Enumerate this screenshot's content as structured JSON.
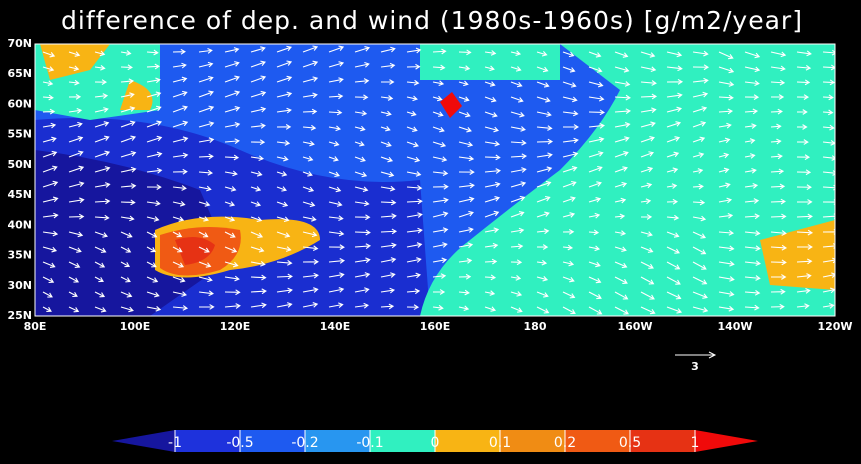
{
  "title": "difference of dep. and wind (1980s-1960s) [g/m2/year]",
  "map": {
    "lat_labels": [
      "70N",
      "65N",
      "60N",
      "55N",
      "50N",
      "45N",
      "40N",
      "35N",
      "30N",
      "25N"
    ],
    "lon_labels": [
      "80E",
      "100E",
      "120E",
      "140E",
      "160E",
      "180",
      "160W",
      "140W",
      "120W"
    ]
  },
  "colorbar": {
    "levels": [
      -1,
      -0.5,
      -0.2,
      -0.1,
      0,
      0.1,
      0.2,
      0.5,
      1
    ],
    "colors": [
      "#16169e",
      "#1e32dc",
      "#1e5af0",
      "#2896f0",
      "#30f0c0",
      "#f8b414",
      "#f08c14",
      "#f05a14",
      "#e63214",
      "#f00a0a"
    ]
  },
  "reference_vector": {
    "label": "3"
  }
}
